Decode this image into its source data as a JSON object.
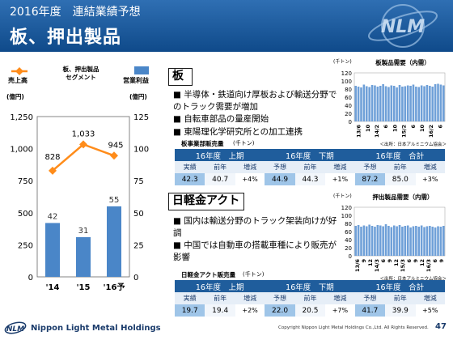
{
  "header": {
    "subtitle": "2016年度　連結業績予想",
    "title": "板、押出製品"
  },
  "left_chart": {
    "legend_line_label": "売上高",
    "legend_center_label": "板、押出製品\nセグメント",
    "legend_bar_label": "営業利益",
    "left_unit": "(億円)",
    "right_unit": "(億円)"
  },
  "chart_data": [
    {
      "type": "bar",
      "categories": [
        "'14",
        "'15",
        "'16予"
      ],
      "series": [
        {
          "name": "売上高",
          "type": "line",
          "values": [
            828,
            1033,
            945
          ],
          "axis": "left"
        },
        {
          "name": "営業利益",
          "type": "bar",
          "values": [
            42,
            31,
            55
          ],
          "axis": "right"
        }
      ],
      "ylim_left": [
        0,
        1250
      ],
      "ylim_right": [
        0,
        125
      ],
      "yticks_left": [
        "0",
        "250",
        "500",
        "750",
        "1,000",
        "1,250"
      ],
      "yticks_right": [
        "0",
        "25",
        "50",
        "75",
        "100",
        "125"
      ],
      "data_labels_line": [
        "828",
        "1,033",
        "945"
      ],
      "data_labels_bar": [
        "42",
        "31",
        "55"
      ],
      "line_color": "#ff8c1a",
      "bar_color": "#4a86c8"
    },
    {
      "type": "bar",
      "title": "板製品需要（内需）",
      "unit": "(千トン)",
      "yticks": [
        "0",
        "20",
        "40",
        "60",
        "80",
        "100",
        "120"
      ],
      "ylim": [
        0,
        120
      ],
      "xticks": [
        "13/6",
        "10",
        "14/2",
        "6",
        "10",
        "15/2",
        "6",
        "10",
        "16/2",
        "6"
      ],
      "values": [
        88,
        86,
        84,
        91,
        87,
        85,
        90,
        89,
        86,
        88,
        92,
        87,
        85,
        89,
        88,
        84,
        90,
        86,
        87,
        89,
        88,
        91,
        86,
        85,
        89,
        87,
        90,
        88,
        86,
        92,
        93,
        91,
        89
      ],
      "source": "＜出所：日本アルミニウム協会＞"
    },
    {
      "type": "bar",
      "title": "押出製品需要（内需）",
      "unit": "(千トン)",
      "yticks": [
        "0",
        "20",
        "40",
        "60",
        "80",
        "100",
        "120"
      ],
      "ylim": [
        0,
        120
      ],
      "xticks": [
        "13/6",
        "9",
        "12",
        "14/3",
        "6",
        "9",
        "12",
        "15/3",
        "6",
        "9",
        "12",
        "16/3",
        "6",
        "9"
      ],
      "values": [
        74,
        76,
        72,
        75,
        73,
        77,
        74,
        72,
        76,
        75,
        73,
        78,
        74,
        71,
        75,
        73,
        76,
        72,
        74,
        75,
        70,
        73,
        74,
        72,
        75,
        71,
        73,
        74,
        72,
        70,
        73,
        72,
        74
      ],
      "source": "＜出所：日本アルミニウム協会＞"
    }
  ],
  "plate": {
    "heading": "板",
    "bullets": [
      "■ 半導体・鉄道向け厚板および輸送分野でのトラック需要が増加",
      "■ 自転車部品の量産開始",
      "■ 東陽理化学研究所との加工連携"
    ],
    "table_title": "板事業部販売量",
    "table_unit": "(千トン)",
    "headers": [
      "16年度　上期",
      "16年度　下期",
      "16年度　合計"
    ],
    "sub_headers": [
      "実績",
      "前年",
      "増減",
      "予想",
      "前年",
      "増減",
      "予想",
      "前年",
      "増減"
    ],
    "values": [
      "42.3",
      "40.7",
      "+4%",
      "44.9",
      "44.3",
      "+1%",
      "87.2",
      "85.0",
      "+3%"
    ]
  },
  "extrusion": {
    "heading": "日軽金アクト",
    "bullets": [
      "■ 国内は輸送分野のトラック架装向けが好調",
      "■ 中国では自動車の搭載車種により販売が影響"
    ],
    "table_title": "日軽金アクト販売量",
    "table_unit": "(千トン)",
    "headers": [
      "16年度　上期",
      "16年度　下期",
      "16年度　合計"
    ],
    "sub_headers": [
      "実績",
      "前年",
      "増減",
      "予想",
      "前年",
      "増減",
      "予想",
      "前年",
      "増減"
    ],
    "values": [
      "19.7",
      "19.4",
      "+2%",
      "22.0",
      "20.5",
      "+7%",
      "41.7",
      "39.9",
      "+5%"
    ]
  },
  "footer": {
    "company": "Nippon Light Metal Holdings",
    "copyright": "Copyright Nippon Light Metal Holdings Co.,Ltd. All Rights Reserved.",
    "page": "47"
  }
}
